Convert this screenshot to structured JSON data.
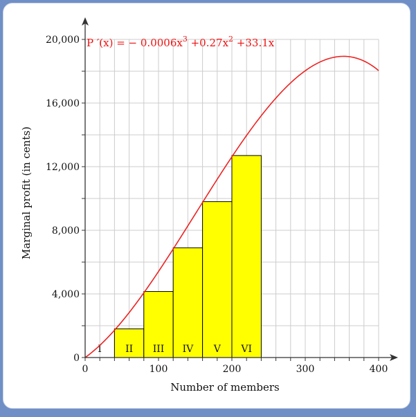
{
  "chart_data": {
    "type": "bar",
    "xlabel": "Number of members",
    "ylabel": "Marginal profit (in cents)",
    "xlim": [
      0,
      400
    ],
    "ylim": [
      0,
      20000
    ],
    "x_ticks": [
      0,
      100,
      200,
      300,
      400
    ],
    "x_tick_labels": [
      "0",
      "100",
      "200",
      "300",
      "400"
    ],
    "y_ticks": [
      0,
      4000,
      8000,
      12000,
      16000,
      20000
    ],
    "y_tick_labels": [
      "0",
      "4,000",
      "8,000",
      "12,000",
      "16,000",
      "20,000"
    ],
    "grid": true,
    "bars": [
      {
        "label": "I",
        "x0": 0,
        "x1": 40,
        "value": 0
      },
      {
        "label": "II",
        "x0": 40,
        "x1": 80,
        "value": 1800
      },
      {
        "label": "III",
        "x0": 80,
        "x1": 120,
        "value": 4150
      },
      {
        "label": "IV",
        "x0": 120,
        "x1": 160,
        "value": 6900
      },
      {
        "label": "V",
        "x0": 160,
        "x1": 200,
        "value": 9800
      },
      {
        "label": "VI",
        "x0": 200,
        "x1": 240,
        "value": 12700
      }
    ],
    "curve": {
      "coefficients": {
        "a3": -0.0006,
        "a2": 0.27,
        "a1": 33.1
      },
      "domain": [
        0,
        400
      ]
    },
    "formula_text": {
      "lhs": "P ′(x) = ",
      "term1": "− 0.0006x",
      "exp1": "3",
      "term2": " +0.27x",
      "exp2": "2",
      "term3": " +33.1x"
    },
    "colors": {
      "bar_fill": "#ffff00",
      "bar_stroke": "#000000",
      "curve": "#ee2222",
      "grid": "#cccccc",
      "formula": "#ee1111"
    }
  }
}
